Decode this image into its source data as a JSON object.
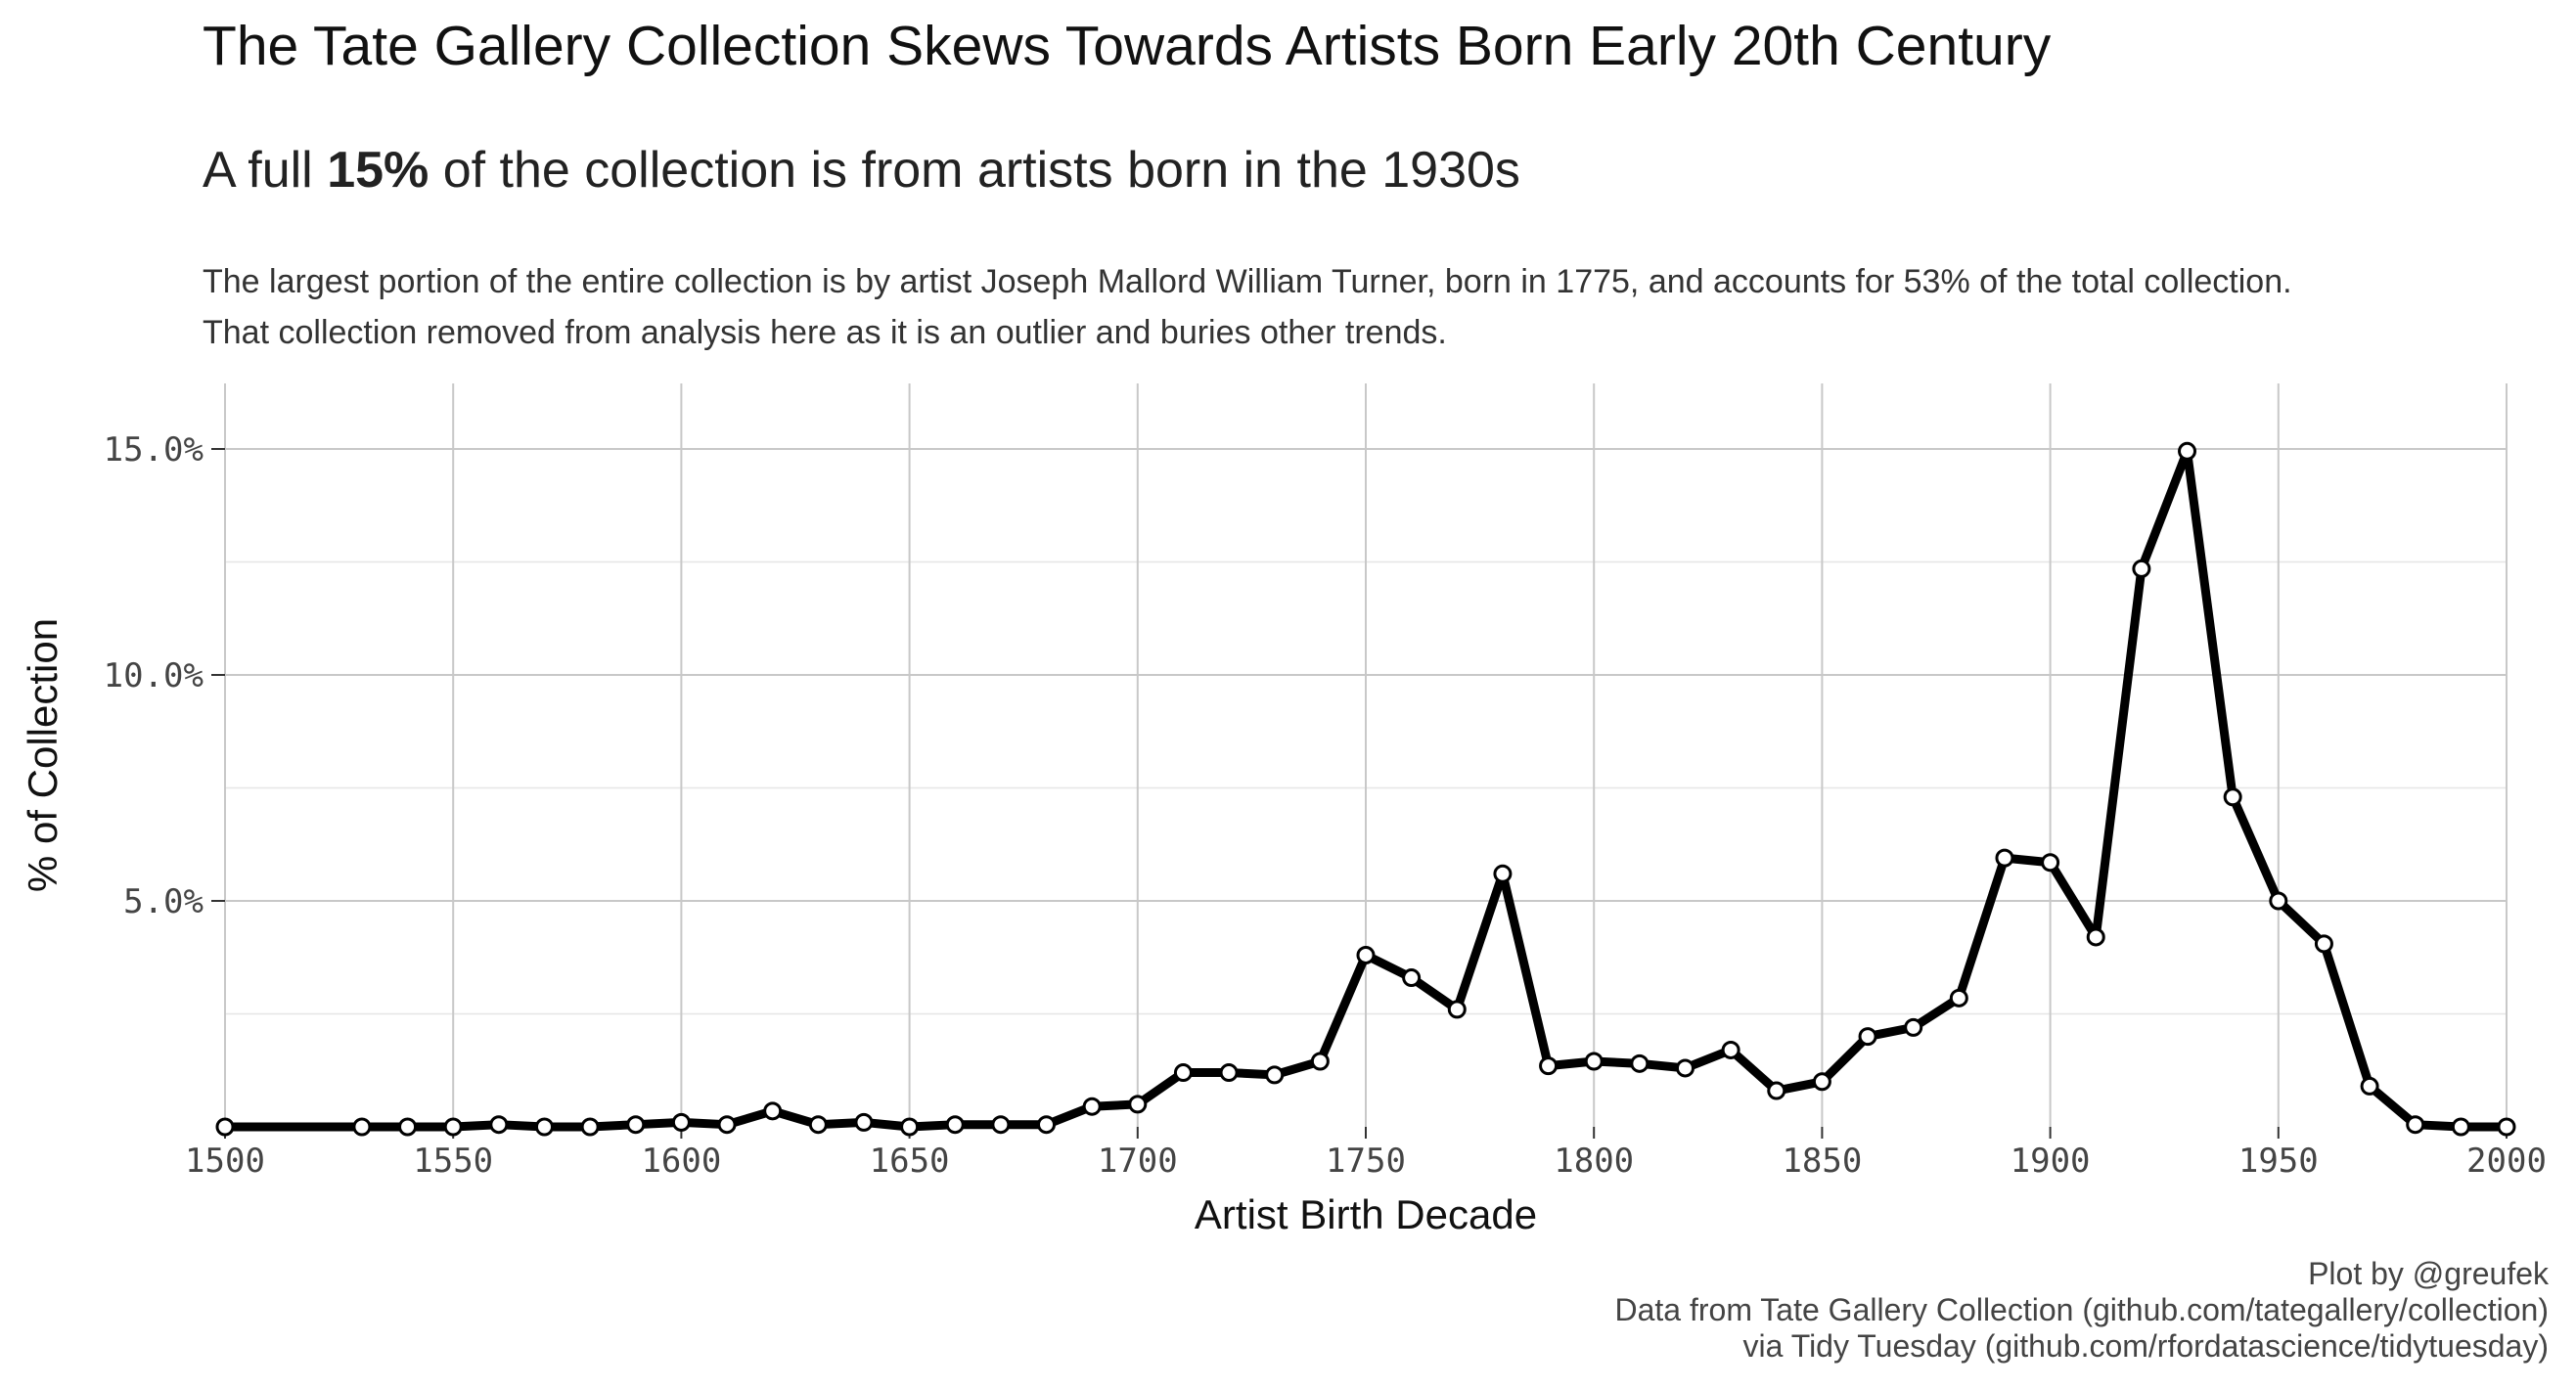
{
  "header": {
    "title": "The Tate Gallery Collection Skews Towards Artists Born Early 20th Century",
    "subtitle_pre": "A full ",
    "subtitle_bold": "15%",
    "subtitle_post": " of the collection is from artists born in the 1930s",
    "description_line1": "The largest portion of the entire collection is by artist Joseph Mallord William Turner, born in 1775, and accounts for 53% of the total collection.",
    "description_line2": "That collection removed from analysis here as it is an outlier and buries other trends."
  },
  "caption": {
    "line1": "Plot by @greufek",
    "line2": "Data from Tate Gallery Collection (github.com/tategallery/collection)",
    "line3": "via Tidy Tuesday (github.com/rfordatascience/tidytuesday)"
  },
  "colors": {
    "line": "#000000",
    "point_fill": "#ffffff",
    "grid_major": "#c8c8c8",
    "grid_minor": "#e6e6e6"
  },
  "chart_data": {
    "type": "line",
    "xlabel": "Artist Birth Decade",
    "ylabel": "% of Collection",
    "xlim": [
      1500,
      2000
    ],
    "ylim": [
      0,
      15
    ],
    "x_ticks": [
      1500,
      1550,
      1600,
      1650,
      1700,
      1750,
      1800,
      1850,
      1900,
      1950,
      2000
    ],
    "x_tick_labels": [
      "1500",
      "1550",
      "1600",
      "1650",
      "1700",
      "1750",
      "1800",
      "1850",
      "1900",
      "1950",
      "2000"
    ],
    "y_ticks": [
      5,
      10,
      15
    ],
    "y_tick_labels": [
      "5.0%",
      "10.0%",
      "15.0%"
    ],
    "y_minor_ticks": [
      2.5,
      7.5,
      12.5
    ],
    "grid": true,
    "legend": false,
    "series": [
      {
        "x": [
          1500,
          1530,
          1540,
          1550,
          1560,
          1570,
          1580,
          1590,
          1600,
          1610,
          1620,
          1630,
          1640,
          1650,
          1660,
          1670,
          1680,
          1690,
          1700,
          1710,
          1720,
          1730,
          1740,
          1750,
          1760,
          1770,
          1780,
          1790,
          1800,
          1810,
          1820,
          1830,
          1840,
          1850,
          1860,
          1870,
          1880,
          1890,
          1900,
          1910,
          1920,
          1930,
          1940,
          1950,
          1960,
          1970,
          1980,
          1990,
          2000
        ],
        "values": [
          0.0,
          0.0,
          0.0,
          0.0,
          0.05,
          0.0,
          0.0,
          0.05,
          0.1,
          0.05,
          0.35,
          0.05,
          0.1,
          0.0,
          0.05,
          0.05,
          0.05,
          0.45,
          0.5,
          1.2,
          1.2,
          1.15,
          1.45,
          3.8,
          3.3,
          2.6,
          5.6,
          1.35,
          1.45,
          1.4,
          1.3,
          1.7,
          0.8,
          1.0,
          2.0,
          2.2,
          2.85,
          5.95,
          5.85,
          4.2,
          12.35,
          14.95,
          7.3,
          5.0,
          4.05,
          0.9,
          0.05,
          0.0,
          0.0
        ]
      }
    ]
  }
}
